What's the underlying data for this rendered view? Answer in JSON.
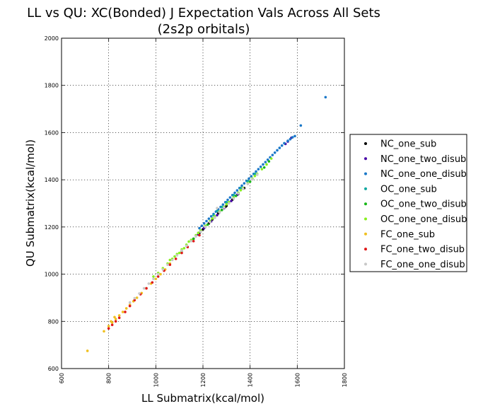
{
  "chart_data": {
    "type": "scatter",
    "title": "LL vs QU: XC(Bonded) J Expectation Vals Across All Sets",
    "subtitle": "(2s2p orbitals)",
    "xlabel": "LL Submatrix(kcal/mol)",
    "ylabel": "QU Submatrix(kcal/mol)",
    "xlim": [
      600,
      1800
    ],
    "ylim": [
      600,
      2000
    ],
    "xticks": [
      600,
      800,
      1000,
      1200,
      1400,
      1600,
      1800
    ],
    "yticks": [
      600,
      800,
      1000,
      1200,
      1400,
      1600,
      1800,
      2000
    ],
    "xtick_labels": [
      "600",
      "800",
      "1000",
      "1200",
      "1400",
      "1600",
      "1800"
    ],
    "ytick_labels": [
      "600",
      "800",
      "1000",
      "1200",
      "1400",
      "1600",
      "1800",
      "2000"
    ],
    "grid": true,
    "legend_position": "right-outside",
    "series": [
      {
        "name": "NC_one_sub",
        "color": "#000000",
        "points": [
          [
            1160,
            1150
          ],
          [
            1185,
            1175
          ],
          [
            1200,
            1190
          ],
          [
            1225,
            1215
          ],
          [
            1250,
            1240
          ],
          [
            1280,
            1272
          ],
          [
            1300,
            1290
          ],
          [
            1325,
            1316
          ],
          [
            1350,
            1340
          ],
          [
            1375,
            1365
          ],
          [
            1210,
            1200
          ],
          [
            1240,
            1232
          ],
          [
            1265,
            1258
          ],
          [
            1295,
            1285
          ]
        ]
      },
      {
        "name": "NC_one_two_disub",
        "color": "#4a0aa8",
        "points": [
          [
            1180,
            1168
          ],
          [
            1205,
            1195
          ],
          [
            1235,
            1224
          ],
          [
            1260,
            1250
          ],
          [
            1290,
            1280
          ],
          [
            1320,
            1310
          ],
          [
            1345,
            1336
          ],
          [
            1560,
            1562
          ],
          [
            1575,
            1578
          ],
          [
            1550,
            1552
          ],
          [
            1270,
            1262
          ]
        ]
      },
      {
        "name": "NC_one_one_disub",
        "color": "#1a78c8",
        "points": [
          [
            1720,
            1750
          ],
          [
            1615,
            1630
          ],
          [
            1590,
            1585
          ],
          [
            1580,
            1580
          ],
          [
            1570,
            1572
          ],
          [
            1560,
            1565
          ],
          [
            1545,
            1555
          ],
          [
            1535,
            1545
          ],
          [
            1525,
            1535
          ],
          [
            1515,
            1525
          ],
          [
            1505,
            1515
          ],
          [
            1495,
            1505
          ],
          [
            1485,
            1495
          ],
          [
            1475,
            1485
          ],
          [
            1465,
            1475
          ],
          [
            1455,
            1465
          ],
          [
            1445,
            1455
          ],
          [
            1435,
            1445
          ],
          [
            1425,
            1435
          ],
          [
            1415,
            1425
          ],
          [
            1405,
            1415
          ],
          [
            1395,
            1405
          ],
          [
            1385,
            1395
          ],
          [
            1375,
            1385
          ],
          [
            1365,
            1375
          ],
          [
            1355,
            1365
          ],
          [
            1345,
            1355
          ],
          [
            1335,
            1345
          ],
          [
            1325,
            1335
          ],
          [
            1315,
            1325
          ],
          [
            1305,
            1315
          ],
          [
            1295,
            1305
          ],
          [
            1285,
            1295
          ],
          [
            1275,
            1285
          ],
          [
            1265,
            1275
          ],
          [
            1255,
            1265
          ],
          [
            1245,
            1255
          ],
          [
            1235,
            1245
          ],
          [
            1225,
            1235
          ],
          [
            1215,
            1225
          ],
          [
            1205,
            1215
          ],
          [
            1195,
            1205
          ],
          [
            1185,
            1195
          ]
        ]
      },
      {
        "name": "OC_one_sub",
        "color": "#10a8a0",
        "points": [
          [
            1280,
            1285
          ],
          [
            1300,
            1305
          ],
          [
            1330,
            1335
          ],
          [
            1360,
            1365
          ],
          [
            1390,
            1395
          ],
          [
            1420,
            1425
          ],
          [
            1260,
            1268
          ],
          [
            1245,
            1250
          ]
        ]
      },
      {
        "name": "OC_one_two_disub",
        "color": "#18b818",
        "points": [
          [
            1130,
            1120
          ],
          [
            1160,
            1150
          ],
          [
            1190,
            1180
          ],
          [
            1220,
            1210
          ],
          [
            1250,
            1242
          ],
          [
            1280,
            1272
          ],
          [
            1310,
            1302
          ],
          [
            1340,
            1332
          ],
          [
            1370,
            1362
          ],
          [
            1400,
            1392
          ],
          [
            1430,
            1422
          ],
          [
            1460,
            1452
          ],
          [
            1110,
            1098
          ],
          [
            1480,
            1478
          ],
          [
            1350,
            1344
          ]
        ]
      },
      {
        "name": "OC_one_one_disub",
        "color": "#88f020",
        "points": [
          [
            990,
            990
          ],
          [
            1010,
            1005
          ],
          [
            1030,
            1025
          ],
          [
            1050,
            1045
          ],
          [
            1070,
            1065
          ],
          [
            1090,
            1085
          ],
          [
            1110,
            1105
          ],
          [
            1130,
            1125
          ],
          [
            1150,
            1145
          ],
          [
            1170,
            1165
          ],
          [
            1190,
            1185
          ],
          [
            1210,
            1205
          ],
          [
            1230,
            1225
          ],
          [
            1250,
            1245
          ],
          [
            1270,
            1265
          ],
          [
            1290,
            1285
          ],
          [
            1310,
            1305
          ],
          [
            1330,
            1325
          ],
          [
            1350,
            1345
          ],
          [
            1370,
            1365
          ],
          [
            1390,
            1385
          ],
          [
            1410,
            1405
          ],
          [
            1430,
            1425
          ],
          [
            1450,
            1445
          ],
          [
            1470,
            1465
          ],
          [
            1490,
            1490
          ],
          [
            1100,
            1090
          ],
          [
            1060,
            1060
          ],
          [
            1120,
            1110
          ],
          [
            1080,
            1075
          ],
          [
            1140,
            1138
          ],
          [
            1180,
            1175
          ],
          [
            1240,
            1236
          ],
          [
            1300,
            1296
          ],
          [
            1360,
            1356
          ],
          [
            1420,
            1416
          ]
        ]
      },
      {
        "name": "FC_one_sub",
        "color": "#f0c020",
        "points": [
          [
            710,
            675
          ],
          [
            780,
            758
          ],
          [
            800,
            780
          ],
          [
            815,
            795
          ],
          [
            830,
            810
          ],
          [
            845,
            825
          ],
          [
            860,
            840
          ],
          [
            875,
            855
          ],
          [
            890,
            870
          ],
          [
            905,
            885
          ],
          [
            920,
            900
          ],
          [
            940,
            920
          ],
          [
            960,
            940
          ],
          [
            980,
            960
          ],
          [
            1000,
            980
          ],
          [
            1020,
            1000
          ],
          [
            1040,
            1020
          ],
          [
            1060,
            1045
          ],
          [
            810,
            800
          ],
          [
            825,
            818
          ]
        ]
      },
      {
        "name": "FC_one_two_disub",
        "color": "#e01818",
        "points": [
          [
            800,
            770
          ],
          [
            815,
            785
          ],
          [
            830,
            800
          ],
          [
            845,
            815
          ],
          [
            870,
            840
          ],
          [
            890,
            865
          ],
          [
            910,
            890
          ],
          [
            935,
            915
          ],
          [
            960,
            940
          ],
          [
            985,
            965
          ],
          [
            1010,
            990
          ],
          [
            1035,
            1015
          ],
          [
            1060,
            1040
          ],
          [
            1085,
            1065
          ],
          [
            1110,
            1090
          ],
          [
            1135,
            1115
          ],
          [
            1160,
            1140
          ],
          [
            1185,
            1165
          ]
        ]
      },
      {
        "name": "FC_one_one_disub",
        "color": "#c8c8c8",
        "points": [
          [
            890,
            880
          ],
          [
            910,
            898
          ],
          [
            930,
            918
          ],
          [
            950,
            940
          ],
          [
            970,
            960
          ],
          [
            990,
            980
          ],
          [
            1010,
            1000
          ],
          [
            1030,
            1020
          ],
          [
            1050,
            1040
          ],
          [
            1070,
            1060
          ],
          [
            1090,
            1080
          ],
          [
            1110,
            1100
          ],
          [
            1130,
            1120
          ],
          [
            1150,
            1140
          ],
          [
            1170,
            1160
          ],
          [
            1190,
            1180
          ],
          [
            1210,
            1200
          ],
          [
            1230,
            1220
          ],
          [
            1250,
            1240
          ],
          [
            1270,
            1262
          ],
          [
            1290,
            1282
          ],
          [
            1310,
            1300
          ],
          [
            1330,
            1320
          ],
          [
            1350,
            1342
          ],
          [
            1370,
            1362
          ],
          [
            1390,
            1382
          ],
          [
            1410,
            1402
          ],
          [
            1430,
            1422
          ],
          [
            1260,
            1280
          ]
        ]
      }
    ]
  }
}
